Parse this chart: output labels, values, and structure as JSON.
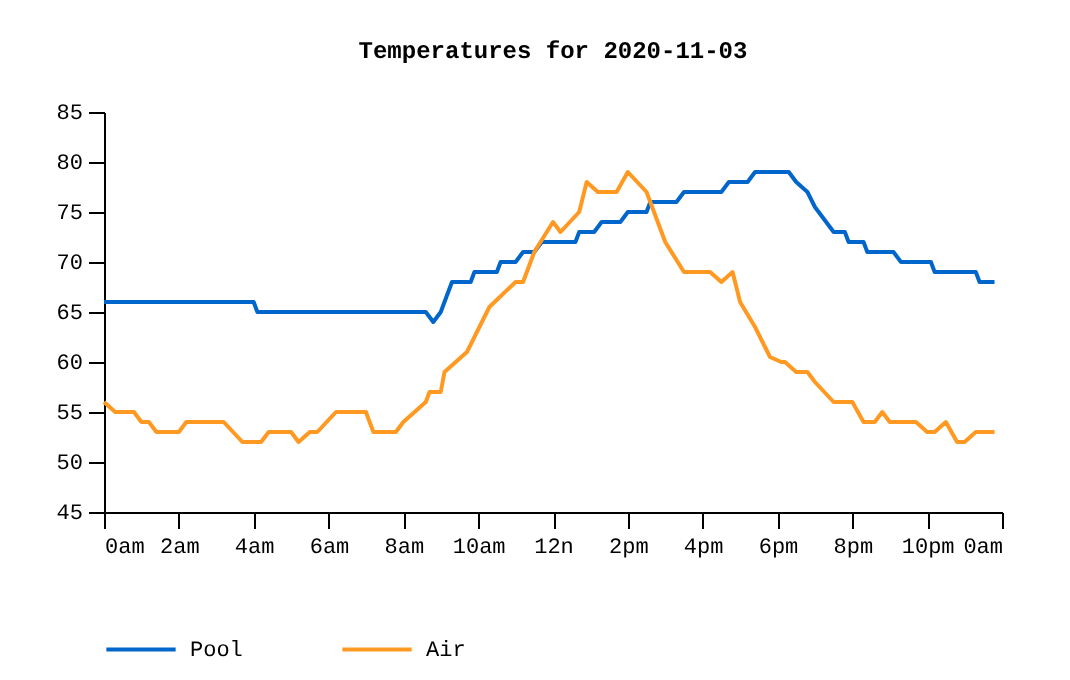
{
  "chart_data": {
    "type": "line",
    "title": "Temperatures for 2020-11-03",
    "x": [
      "2020-11-03T00:00",
      "2020-11-03T00:18",
      "2020-11-03T00:48",
      "2020-11-03T01:00",
      "2020-11-03T01:12",
      "2020-11-03T01:24",
      "2020-11-03T02:00",
      "2020-11-03T02:12",
      "2020-11-03T03:12",
      "2020-11-03T03:42",
      "2020-11-03T04:12",
      "2020-11-03T04:24",
      "2020-11-03T05:00",
      "2020-11-03T05:12",
      "2020-11-03T05:30",
      "2020-11-03T05:42",
      "2020-11-03T06:12",
      "2020-11-03T07:00",
      "2020-11-03T07:12",
      "2020-11-03T07:48",
      "2020-11-03T08:00",
      "2020-11-03T08:36",
      "2020-11-03T08:42",
      "2020-11-03T09:00",
      "2020-11-03T09:06",
      "2020-11-03T09:42",
      "2020-11-03T10:18",
      "2020-11-03T11:00",
      "2020-11-03T11:12",
      "2020-11-03T11:30",
      "2020-11-03T12:00",
      "2020-11-03T12:12",
      "2020-11-03T12:42",
      "2020-11-03T12:54",
      "2020-11-03T13:12",
      "2020-11-03T13:42",
      "2020-11-03T14:00",
      "2020-11-03T14:30",
      "2020-11-03T15:00",
      "2020-11-03T15:30",
      "2020-11-03T16:12",
      "2020-11-03T16:30",
      "2020-11-03T16:48",
      "2020-11-03T17:00",
      "2020-11-03T17:24",
      "2020-11-03T17:36",
      "2020-11-03T17:48",
      "2020-11-03T18:06",
      "2020-11-03T18:12",
      "2020-11-03T18:30",
      "2020-11-03T18:48",
      "2020-11-03T19:00",
      "2020-11-03T19:30",
      "2020-11-03T20:00",
      "2020-11-03T20:18",
      "2020-11-03T20:36",
      "2020-11-03T20:48",
      "2020-11-03T21:00",
      "2020-11-03T21:42",
      "2020-11-03T22:00",
      "2020-11-03T22:12",
      "2020-11-03T22:30",
      "2020-11-03T22:48",
      "2020-11-03T23:00",
      "2020-11-03T23:18",
      "2020-11-03T23:48"
    ],
    "series": [
      {
        "name": "Pool",
        "color": "#0066cc",
        "x": [
          "2020-11-03T00:00",
          "2020-11-03T04:00",
          "2020-11-03T04:06",
          "2020-11-03T08:36",
          "2020-11-03T08:48",
          "2020-11-03T09:00",
          "2020-11-03T09:18",
          "2020-11-03T09:48",
          "2020-11-03T09:54",
          "2020-11-03T10:30",
          "2020-11-03T10:36",
          "2020-11-03T11:00",
          "2020-11-03T11:12",
          "2020-11-03T11:30",
          "2020-11-03T11:42",
          "2020-11-03T12:36",
          "2020-11-03T12:42",
          "2020-11-03T13:06",
          "2020-11-03T13:18",
          "2020-11-03T13:48",
          "2020-11-03T14:00",
          "2020-11-03T14:30",
          "2020-11-03T14:36",
          "2020-11-03T15:18",
          "2020-11-03T15:30",
          "2020-11-03T16:30",
          "2020-11-03T16:42",
          "2020-11-03T17:12",
          "2020-11-03T17:24",
          "2020-11-03T18:18",
          "2020-11-03T18:30",
          "2020-11-03T18:48",
          "2020-11-03T19:00",
          "2020-11-03T19:12",
          "2020-11-03T19:30",
          "2020-11-03T19:48",
          "2020-11-03T19:54",
          "2020-11-03T20:18",
          "2020-11-03T20:24",
          "2020-11-03T21:06",
          "2020-11-03T21:18",
          "2020-11-03T22:06",
          "2020-11-03T22:12",
          "2020-11-03T23:18",
          "2020-11-03T23:24",
          "2020-11-03T23:48"
        ],
        "values": [
          66,
          66,
          65,
          65,
          64,
          65,
          68,
          68,
          69,
          69,
          70,
          70,
          71,
          71,
          72,
          72,
          73,
          73,
          74,
          74,
          75,
          75,
          76,
          76,
          77,
          77,
          78,
          78,
          79,
          79,
          78,
          77,
          75.5,
          74.5,
          73,
          73,
          72,
          72,
          71,
          71,
          70,
          70,
          69,
          69,
          68,
          68
        ]
      },
      {
        "name": "Air",
        "color": "#ff9922",
        "values": [
          56,
          55,
          55,
          54,
          54,
          53,
          53,
          54,
          54,
          52,
          52,
          53,
          53,
          52,
          53,
          53,
          55,
          55,
          53,
          53,
          54,
          56,
          57,
          57,
          59,
          61,
          65.5,
          68,
          68,
          71,
          74,
          73,
          75,
          78,
          77,
          77,
          79,
          77,
          72,
          69,
          69,
          68,
          69,
          66,
          63.5,
          62,
          60.5,
          60,
          60,
          59,
          59,
          58,
          56,
          56,
          54,
          54,
          55,
          54,
          54,
          53,
          53,
          54,
          52,
          52,
          53,
          53
        ]
      }
    ],
    "xlim": [
      "2020-11-03T00:00",
      "2020-11-04T00:00"
    ],
    "xticks": [
      {
        "value": "2020-11-03T00:00",
        "label": "0am"
      },
      {
        "value": "2020-11-03T02:00",
        "label": "2am"
      },
      {
        "value": "2020-11-03T04:00",
        "label": "4am"
      },
      {
        "value": "2020-11-03T06:00",
        "label": "6am"
      },
      {
        "value": "2020-11-03T08:00",
        "label": "8am"
      },
      {
        "value": "2020-11-03T10:00",
        "label": "10am"
      },
      {
        "value": "2020-11-03T12:00",
        "label": "12n"
      },
      {
        "value": "2020-11-03T14:00",
        "label": "2pm"
      },
      {
        "value": "2020-11-03T16:00",
        "label": "4pm"
      },
      {
        "value": "2020-11-03T18:00",
        "label": "6pm"
      },
      {
        "value": "2020-11-03T20:00",
        "label": "8pm"
      },
      {
        "value": "2020-11-03T22:00",
        "label": "10pm"
      },
      {
        "value": "2020-11-04T00:00",
        "label": "0am"
      }
    ],
    "ylim": [
      45,
      85
    ],
    "yticks": [
      45,
      50,
      55,
      60,
      65,
      70,
      75,
      80,
      85
    ],
    "legend": "bottom",
    "line_style": "solid"
  }
}
